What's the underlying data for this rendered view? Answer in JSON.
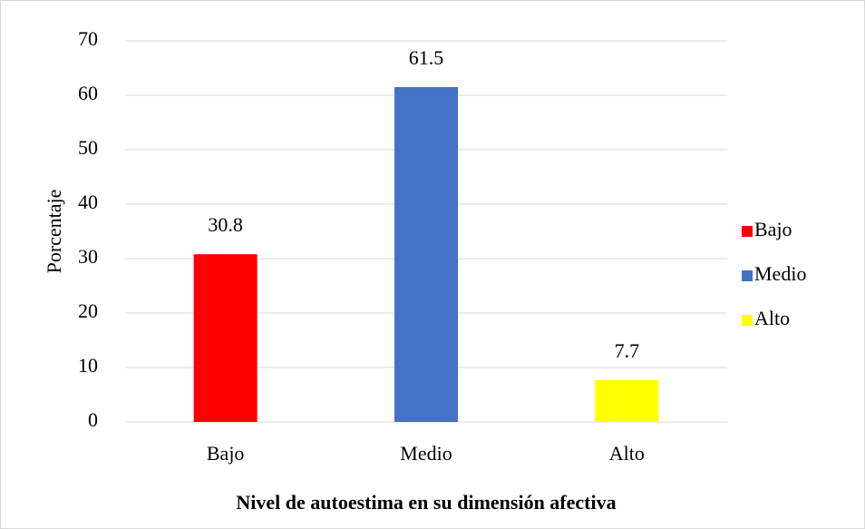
{
  "chart_data": {
    "type": "bar",
    "x_label": "Nivel de autoestima en su dimensión afectiva",
    "y_label": "Porcentaje",
    "categories": [
      "Bajo",
      "Medio",
      "Alto"
    ],
    "values": [
      30.8,
      61.5,
      7.7
    ],
    "colors": [
      "#ff0000",
      "#4472c4",
      "#ffff00"
    ],
    "ylim": [
      0,
      70
    ],
    "yticks": [
      0,
      10,
      20,
      30,
      40,
      50,
      60,
      70
    ],
    "grid": true,
    "legend": "right",
    "data_labels": true
  }
}
